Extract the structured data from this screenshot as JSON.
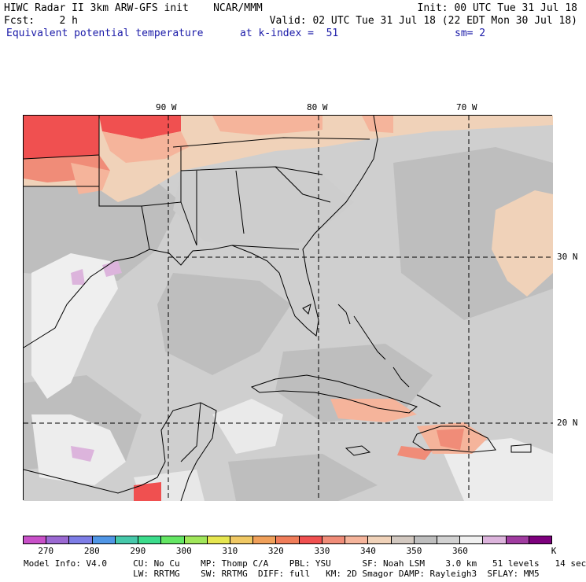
{
  "header": {
    "line1_left": "HIWC Radar II 3km ARW-GFS init    NCAR/MMM",
    "line1_right": "Init: 00 UTC Tue 31 Jul 18",
    "line2_left": "Fcst:    2 h",
    "line2_right": "Valid: 02 UTC Tue 31 Jul 18 (22 EDT Mon 30 Jul 18)",
    "field": "Equivalent potential temperature",
    "level": "at k-index =  51",
    "smooth": "sm= 2"
  },
  "map": {
    "lon_labels": [
      "90 W",
      "80 W",
      "70 W"
    ],
    "lat_labels": [
      "30 N",
      "20 N"
    ]
  },
  "colorbar": {
    "unit": "K",
    "tick_labels": [
      "270",
      "280",
      "290",
      "300",
      "310",
      "320",
      "330",
      "340",
      "350",
      "360"
    ],
    "colors": [
      "#c850c8",
      "#9b69d2",
      "#7d7de6",
      "#5096e6",
      "#46c8aa",
      "#3cdc8c",
      "#64e664",
      "#a0e65a",
      "#e6e650",
      "#f0c864",
      "#f0a05a",
      "#f07d5a",
      "#f05050",
      "#f08c78",
      "#f5b49b",
      "#f0d2b9",
      "#d2c8c0",
      "#bebebe",
      "#d2d2d2",
      "#f0f0f0",
      "#dcb4dc",
      "#a03ca0",
      "#7d007d"
    ]
  },
  "footer": {
    "line1": "Model Info: V4.0     CU: No Cu    MP: Thomp C/A    PBL: YSU      SF: Noah LSM    3.0 km   51 levels   14 sec",
    "line2": "                     LW: RRTMG    SW: RRTMG  DIFF: full   KM: 2D Smagor DAMP: Rayleigh3  SFLAY: MM5"
  }
}
